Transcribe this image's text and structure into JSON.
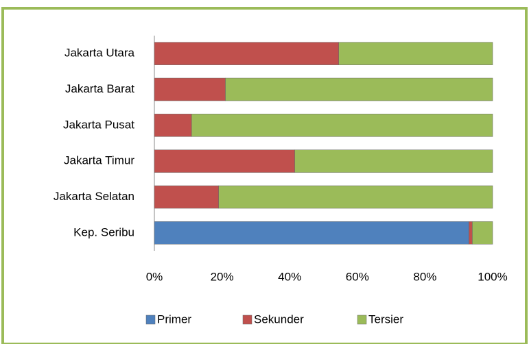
{
  "chart_data": {
    "type": "bar",
    "orientation": "horizontal",
    "stacked": "percent",
    "categories": [
      "Jakarta Utara",
      "Jakarta Barat",
      "Jakarta Pusat",
      "Jakarta Timur",
      "Jakarta Selatan",
      "Kep. Seribu"
    ],
    "series": [
      {
        "name": "Primer",
        "color": "#4f81bd",
        "values": [
          0,
          0,
          0,
          0,
          0,
          93
        ]
      },
      {
        "name": "Sekunder",
        "color": "#c0504d",
        "values": [
          54.5,
          21,
          11,
          41.5,
          19,
          1
        ]
      },
      {
        "name": "Tersier",
        "color": "#9bbb59",
        "values": [
          45.5,
          79,
          89,
          58.5,
          81,
          6
        ]
      }
    ],
    "xlim": [
      0,
      100
    ],
    "xticks": [
      {
        "value": 0,
        "label": "0%"
      },
      {
        "value": 20,
        "label": "20%"
      },
      {
        "value": 40,
        "label": "40%"
      },
      {
        "value": 60,
        "label": "60%"
      },
      {
        "value": 80,
        "label": "80%"
      },
      {
        "value": 100,
        "label": "100%"
      }
    ],
    "legend": "bottom"
  }
}
